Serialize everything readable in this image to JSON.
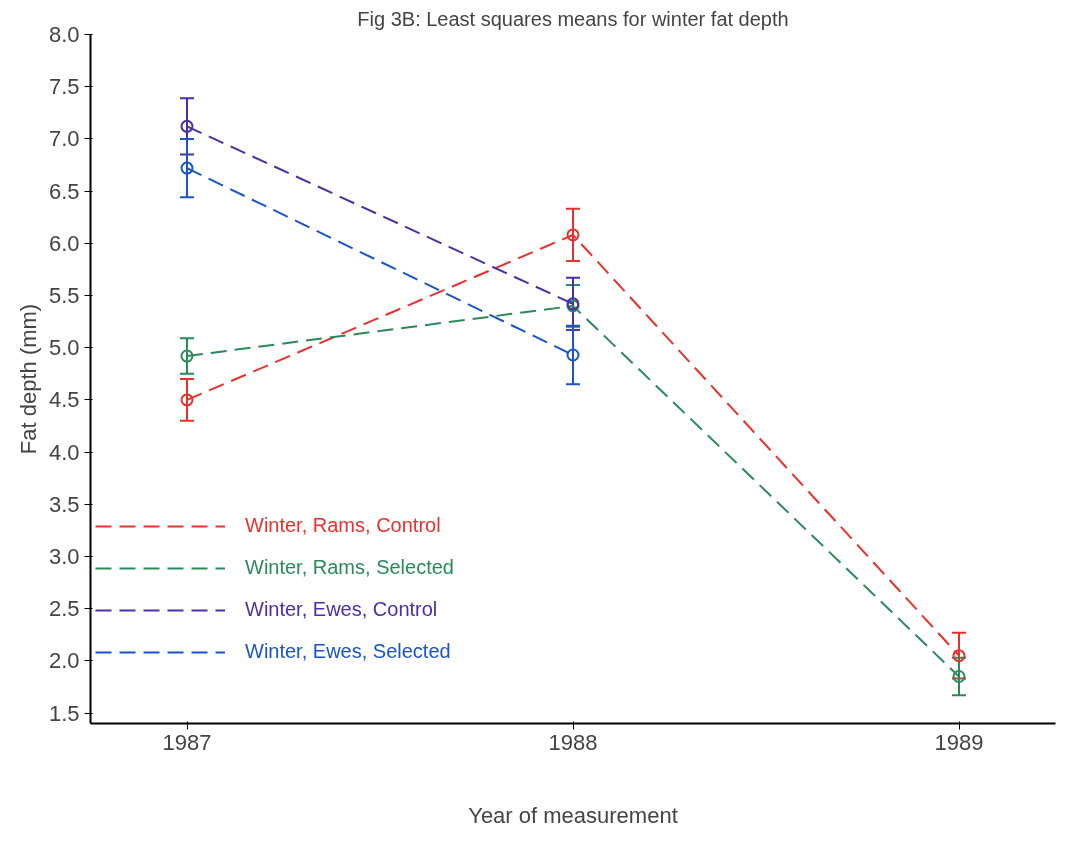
{
  "chart_data": {
    "type": "line",
    "title": "Fig 3B: Least squares means for winter fat depth",
    "xlabel": "Year of measurement",
    "ylabel": "Fat depth (mm)",
    "x": [
      1987,
      1988,
      1989
    ],
    "series": [
      {
        "name": "Winter, Rams, Control",
        "color": "#e8302c",
        "values": [
          4.5,
          6.08,
          2.05
        ],
        "errors": [
          0.2,
          0.25,
          0.22
        ]
      },
      {
        "name": "Winter, Rams, Selected",
        "color": "#2a8a5a",
        "values": [
          4.92,
          5.4,
          1.85
        ],
        "errors": [
          0.17,
          0.2,
          0.18
        ]
      },
      {
        "name": "Winter, Ewes, Control",
        "color": "#4a2fa8",
        "values": [
          7.12,
          5.42,
          null
        ],
        "errors": [
          0.27,
          0.25,
          null
        ]
      },
      {
        "name": "Winter, Ewes, Selected",
        "color": "#1a55c8",
        "values": [
          6.72,
          4.93,
          null
        ],
        "errors": [
          0.28,
          0.28,
          null
        ]
      }
    ],
    "xlim": [
      1986.75,
      1989.25
    ],
    "ylim": [
      1.4,
      8.0
    ],
    "xticks": [
      1987,
      1988,
      1989
    ],
    "yticks": [
      {
        "value": 1.5,
        "label": "1.5"
      },
      {
        "value": 2.0,
        "label": "2.0"
      },
      {
        "value": 2.5,
        "label": "2.5"
      },
      {
        "value": 3.0,
        "label": "3.0"
      },
      {
        "value": 3.5,
        "label": "3.5"
      },
      {
        "value": 4.0,
        "label": "4.0"
      },
      {
        "value": 4.5,
        "label": "4.5"
      },
      {
        "value": 5.0,
        "label": "5.0"
      },
      {
        "value": 5.5,
        "label": "5.5"
      },
      {
        "value": 6.0,
        "label": "6.0"
      },
      {
        "value": 6.5,
        "label": "6.5"
      },
      {
        "value": 7.0,
        "label": "7.0"
      },
      {
        "value": 7.5,
        "label": "7.5"
      },
      {
        "value": 8.0,
        "label": "8.0"
      }
    ],
    "grid": false,
    "legend": "bottom left",
    "marker": "circle",
    "line_style": "dashed"
  }
}
